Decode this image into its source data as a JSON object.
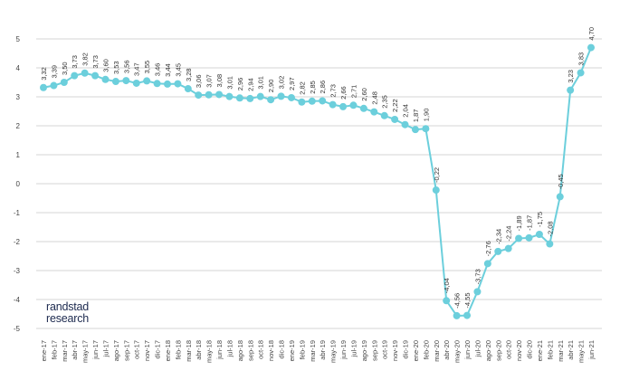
{
  "chart_data": {
    "type": "line",
    "title": "",
    "xlabel": "",
    "ylabel": "",
    "ylim": [
      -5,
      5
    ],
    "yticks": [
      "5",
      "4",
      "3",
      "2",
      "1",
      "0",
      "-1",
      "-2",
      "-3",
      "-4",
      "-5"
    ],
    "grid": true,
    "color": "#6ccfdc",
    "categories": [
      "ene-17",
      "feb-17",
      "mar-17",
      "abr-17",
      "may-17",
      "jun-17",
      "jul-17",
      "ago-17",
      "sep-17",
      "oct-17",
      "nov-17",
      "dic-17",
      "ene-18",
      "feb-18",
      "mar-18",
      "abr-18",
      "may-18",
      "jun-18",
      "jul-18",
      "ago-18",
      "sep-18",
      "oct-18",
      "nov-18",
      "dic-18",
      "ene-19",
      "feb-19",
      "mar-19",
      "abr-19",
      "may-19",
      "jun-19",
      "jul-19",
      "ago-19",
      "sep-19",
      "oct-19",
      "nov-19",
      "dic-19",
      "ene-20",
      "feb-20",
      "mar-20",
      "abr-20",
      "may-20",
      "jun-20",
      "jul-20",
      "ago-20",
      "sep-20",
      "oct-20",
      "nov-20",
      "dic-20",
      "ene-21",
      "feb-21",
      "mar-21",
      "abr-21",
      "may-21",
      "jun-21"
    ],
    "values": [
      3.32,
      3.39,
      3.5,
      3.73,
      3.82,
      3.73,
      3.6,
      3.53,
      3.56,
      3.47,
      3.55,
      3.46,
      3.44,
      3.45,
      3.28,
      3.06,
      3.07,
      3.08,
      3.01,
      2.96,
      2.94,
      3.01,
      2.9,
      3.02,
      2.97,
      2.82,
      2.85,
      2.86,
      2.73,
      2.66,
      2.71,
      2.6,
      2.48,
      2.35,
      2.22,
      2.04,
      1.87,
      1.9,
      -0.22,
      -4.04,
      -4.56,
      -4.55,
      -3.73,
      -2.76,
      -2.34,
      -2.24,
      -1.89,
      -1.87,
      -1.75,
      -2.08,
      -0.45,
      3.23,
      3.83,
      4.7
    ],
    "data_labels": [
      "3,32",
      "3,39",
      "3,50",
      "3,73",
      "3,82",
      "3,73",
      "3,60",
      "3,53",
      "3,56",
      "3,47",
      "3,55",
      "3,46",
      "3,44",
      "3,45",
      "3,28",
      "3,06",
      "3,07",
      "3,08",
      "3,01",
      "2,96",
      "2,94",
      "3,01",
      "2,90",
      "3,02",
      "2,97",
      "2,82",
      "2,85",
      "2,86",
      "2,73",
      "2,66",
      "2,71",
      "2,60",
      "2,48",
      "2,35",
      "2,22",
      "2,04",
      "1,87",
      "1,90",
      "-0,22",
      "-4,04",
      "-4,56",
      "-4,55",
      "-3,73",
      "-2,76",
      "-2,34",
      "-2,24",
      "-1,89",
      "-1,87",
      "-1,75",
      "-2,08",
      "-0,45",
      "3,23",
      "3,83",
      "4,70"
    ]
  },
  "logo": {
    "line1": "randstad",
    "line2": "research"
  }
}
